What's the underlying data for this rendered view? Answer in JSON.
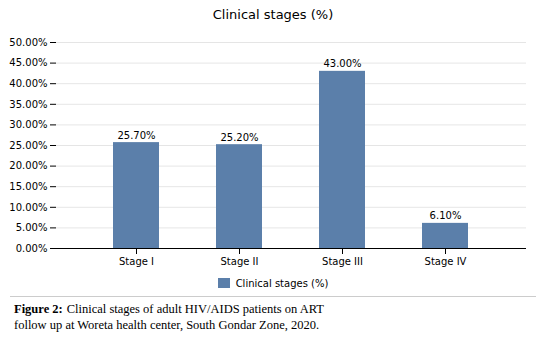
{
  "chart_data": {
    "type": "bar",
    "title": "Clinical stages (%)",
    "categories": [
      "Stage I",
      "Stage II",
      "Stage III",
      "Stage IV"
    ],
    "series": [
      {
        "name": "Clinical stages (%)",
        "color": "#5b7faa",
        "values": [
          25.7,
          25.2,
          43.0,
          6.1
        ],
        "value_labels": [
          "25.70%",
          "25.20%",
          "43.00%",
          "6.10%"
        ]
      }
    ],
    "data_labels": true,
    "legend": "bottom",
    "ylim": [
      0,
      50
    ],
    "yticks": [
      {
        "value": 0,
        "label": "0.00%"
      },
      {
        "value": 5,
        "label": "5.00%"
      },
      {
        "value": 10,
        "label": "10.00%"
      },
      {
        "value": 15,
        "label": "15.00%"
      },
      {
        "value": 20,
        "label": "20.00%"
      },
      {
        "value": 25,
        "label": "25.00%"
      },
      {
        "value": 30,
        "label": "30.00%"
      },
      {
        "value": 35,
        "label": "35.00%"
      },
      {
        "value": 40,
        "label": "40.00%"
      },
      {
        "value": 45,
        "label": "45.00%"
      },
      {
        "value": 50,
        "label": "50.00%"
      }
    ],
    "grid": true,
    "caption": {
      "label": "Figure 2:",
      "text": "Clinical stages of adult HIV/AIDS patients on ART\nfollow up at Woreta health center, South Gondar Zone, 2020."
    }
  }
}
